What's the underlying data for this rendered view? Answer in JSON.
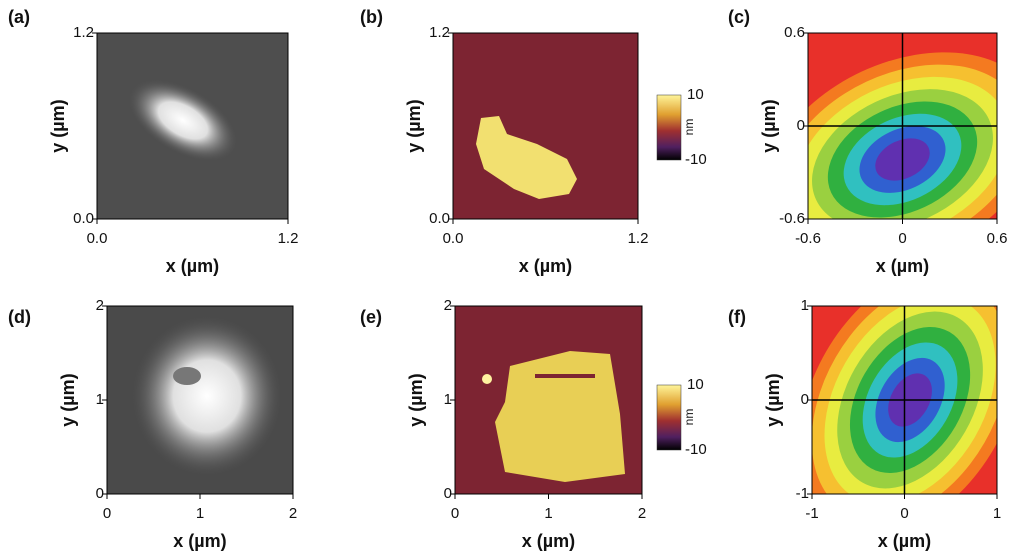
{
  "panels": [
    {
      "label": "(a)",
      "xlabel": "x (µm)",
      "ylabel": "y (µm)",
      "xticks": [
        "0.0",
        "1.2"
      ],
      "yticks": [
        "0.0",
        "1.2"
      ]
    },
    {
      "label": "(b)",
      "xlabel": "x (µm)",
      "ylabel": "y (µm)",
      "xticks": [
        "0.0",
        "1.2"
      ],
      "yticks": [
        "0.0",
        "1.2"
      ],
      "colorbar": {
        "max": "10",
        "unit": "nm",
        "min": "-10"
      }
    },
    {
      "label": "(c)",
      "xlabel": "x (µm)",
      "ylabel": "y (µm)",
      "xticks": [
        "-0.6",
        "0",
        "0.6"
      ],
      "yticks": [
        "-0.6",
        "0",
        "0.6"
      ]
    },
    {
      "label": "(d)",
      "xlabel": "x (µm)",
      "ylabel": "y (µm)",
      "xticks": [
        "0",
        "1",
        "2"
      ],
      "yticks": [
        "0",
        "1",
        "2"
      ]
    },
    {
      "label": "(e)",
      "xlabel": "x (µm)",
      "ylabel": "y (µm)",
      "xticks": [
        "0",
        "1",
        "2"
      ],
      "yticks": [
        "0",
        "1",
        "2"
      ],
      "colorbar": {
        "max": "10",
        "unit": "nm",
        "min": "-10"
      }
    },
    {
      "label": "(f)",
      "xlabel": "x (µm)",
      "ylabel": "y (µm)",
      "xticks": [
        "-1",
        "0",
        "1"
      ],
      "yticks": [
        "-1",
        "0",
        "1"
      ]
    }
  ]
}
